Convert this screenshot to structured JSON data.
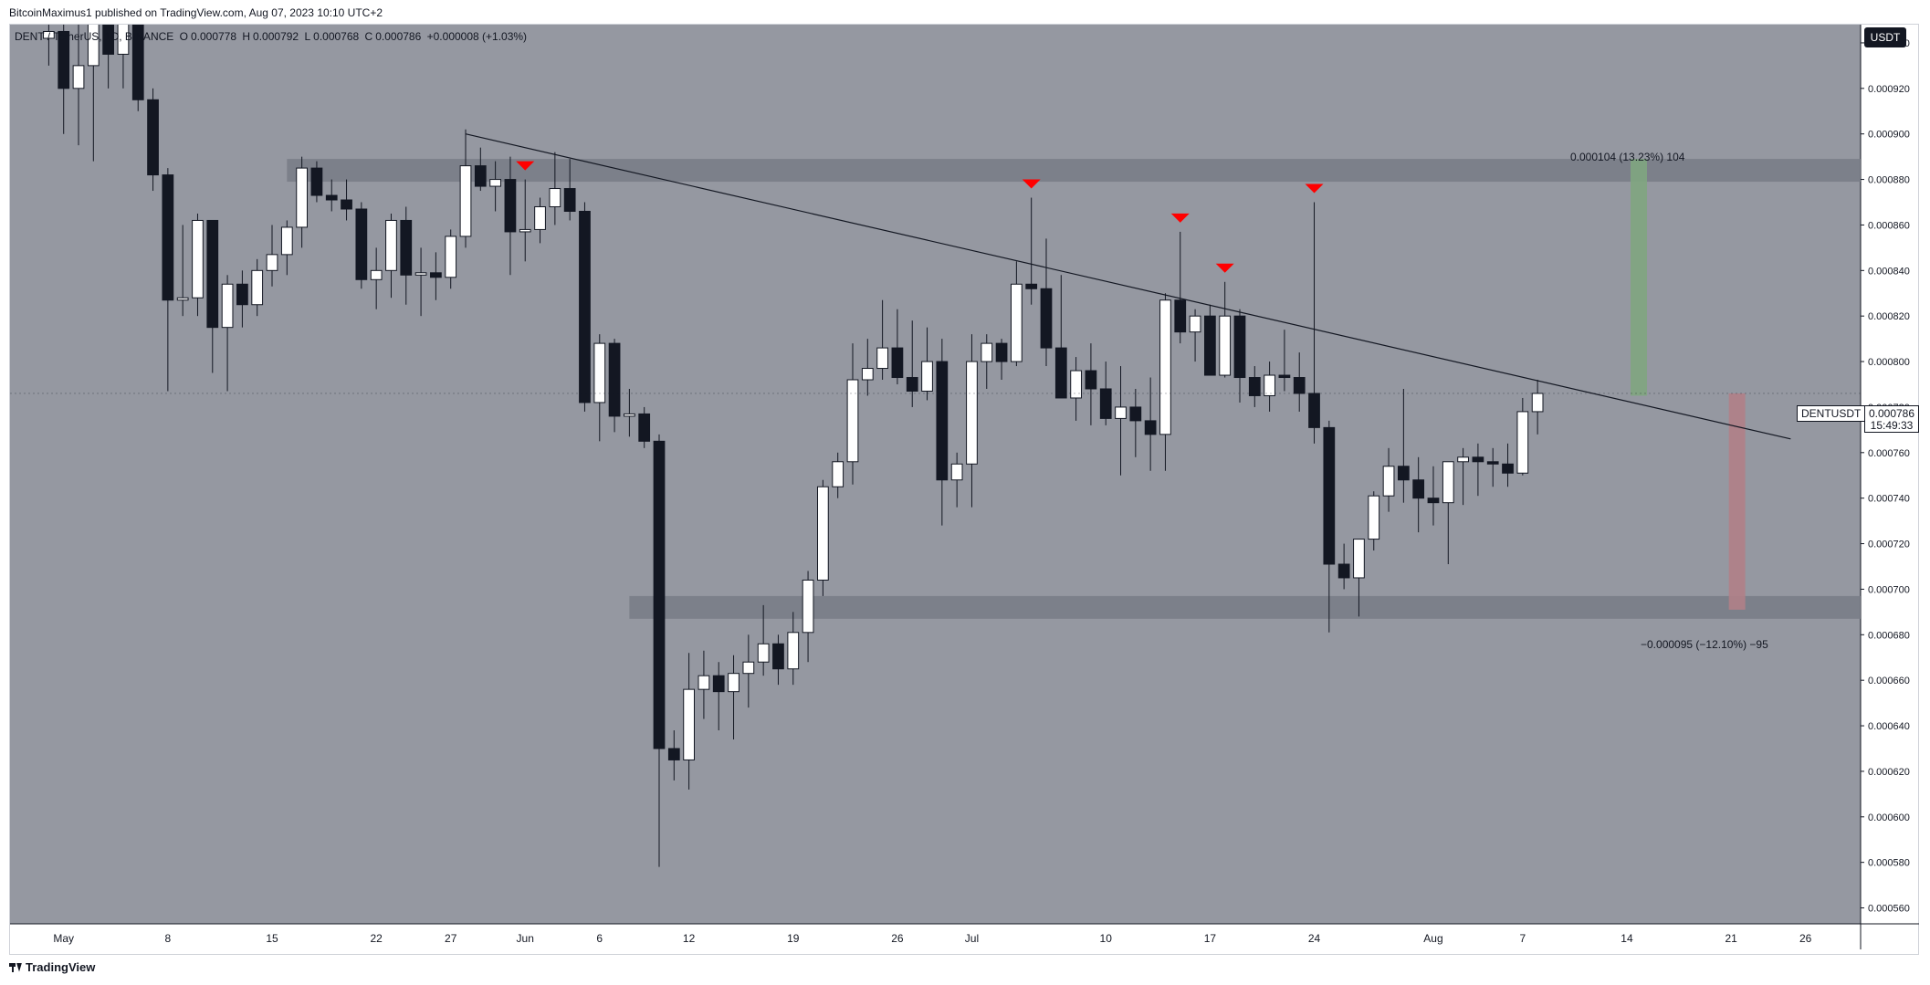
{
  "header": {
    "publisher": "BitcoinMaximus1 published on TradingView.com, Aug 07, 2023 10:10 UTC+2"
  },
  "legend": {
    "symbol": "DENT / TetherUS, 1D, BINANCE",
    "o_label": "O",
    "o_value": "0.000778",
    "h_label": "H",
    "h_value": "0.000792",
    "l_label": "L",
    "l_value": "0.000768",
    "c_label": "C",
    "c_value": "0.000786",
    "change": "+0.000008 (+1.03%)"
  },
  "price_axis": {
    "currency": "USDT",
    "current_price": "0.000786",
    "countdown": "15:49:33",
    "symbol_tag": "DENTUSDT"
  },
  "annotations": {
    "measure_up": "0.000104 (13.23%) 104",
    "measure_down": "−0.000095 (−12.10%) −95"
  },
  "footer": {
    "brand": "TradingView"
  },
  "colors": {
    "background": "#9598a1",
    "up_candle": "#ffffff",
    "down_candle": "#131722",
    "marker": "#ff0000",
    "zone": "#787b86",
    "measure_up": "#7fa57f",
    "measure_down": "#b07f87"
  },
  "chart_data": {
    "type": "candlestick",
    "x_tick_labels": [
      {
        "label": "May",
        "day": 0
      },
      {
        "label": "8",
        "day": 7
      },
      {
        "label": "15",
        "day": 14
      },
      {
        "label": "22",
        "day": 21
      },
      {
        "label": "27",
        "day": 26
      },
      {
        "label": "Jun",
        "day": 31
      },
      {
        "label": "6",
        "day": 36
      },
      {
        "label": "12",
        "day": 42
      },
      {
        "label": "19",
        "day": 49
      },
      {
        "label": "26",
        "day": 56
      },
      {
        "label": "Jul",
        "day": 61
      },
      {
        "label": "10",
        "day": 70
      },
      {
        "label": "17",
        "day": 77
      },
      {
        "label": "24",
        "day": 84
      },
      {
        "label": "Aug",
        "day": 92
      },
      {
        "label": "7",
        "day": 98
      },
      {
        "label": "14",
        "day": 105
      },
      {
        "label": "21",
        "day": 112
      },
      {
        "label": "26",
        "day": 117
      }
    ],
    "y_ticks": [
      "0.000940",
      "0.000920",
      "0.000900",
      "0.000880",
      "0.000860",
      "0.000840",
      "0.000820",
      "0.000800",
      "0.000780",
      "0.000760",
      "0.000740",
      "0.000720",
      "0.000700",
      "0.000680",
      "0.000660",
      "0.000640",
      "0.000620",
      "0.000600",
      "0.000580",
      "0.000560"
    ],
    "ylim": [
      0.000553,
      0.000948
    ],
    "xlim_days": [
      -3.6,
      120.7
    ],
    "candles": [
      {
        "d": -1,
        "o": 0.000942,
        "h": 0.000955,
        "l": 0.00093,
        "c": 0.000945
      },
      {
        "d": 0,
        "o": 0.000945,
        "h": 0.000955,
        "l": 0.0009,
        "c": 0.00092
      },
      {
        "d": 1,
        "o": 0.00092,
        "h": 0.00095,
        "l": 0.000895,
        "c": 0.00093
      },
      {
        "d": 2,
        "o": 0.00093,
        "h": 0.00096,
        "l": 0.000888,
        "c": 0.00095
      },
      {
        "d": 3,
        "o": 0.00095,
        "h": 0.000985,
        "l": 0.00092,
        "c": 0.000935
      },
      {
        "d": 4,
        "o": 0.000935,
        "h": 0.00097,
        "l": 0.00092,
        "c": 0.000955
      },
      {
        "d": 5,
        "o": 0.000955,
        "h": 0.00096,
        "l": 0.00091,
        "c": 0.000915
      },
      {
        "d": 6,
        "o": 0.000915,
        "h": 0.00092,
        "l": 0.000875,
        "c": 0.000882
      },
      {
        "d": 7,
        "o": 0.000882,
        "h": 0.000885,
        "l": 0.000787,
        "c": 0.000827
      },
      {
        "d": 8,
        "o": 0.000827,
        "h": 0.00086,
        "l": 0.00082,
        "c": 0.000828
      },
      {
        "d": 9,
        "o": 0.000828,
        "h": 0.000865,
        "l": 0.00082,
        "c": 0.000862
      },
      {
        "d": 10,
        "o": 0.000862,
        "h": 0.000862,
        "l": 0.000795,
        "c": 0.000815
      },
      {
        "d": 11,
        "o": 0.000815,
        "h": 0.000838,
        "l": 0.000787,
        "c": 0.000834
      },
      {
        "d": 12,
        "o": 0.000834,
        "h": 0.00084,
        "l": 0.000815,
        "c": 0.000825
      },
      {
        "d": 13,
        "o": 0.000825,
        "h": 0.000845,
        "l": 0.00082,
        "c": 0.00084
      },
      {
        "d": 14,
        "o": 0.00084,
        "h": 0.00086,
        "l": 0.000833,
        "c": 0.000847
      },
      {
        "d": 15,
        "o": 0.000847,
        "h": 0.000862,
        "l": 0.000838,
        "c": 0.000859
      },
      {
        "d": 16,
        "o": 0.000859,
        "h": 0.00089,
        "l": 0.00085,
        "c": 0.000885
      },
      {
        "d": 17,
        "o": 0.000885,
        "h": 0.000888,
        "l": 0.00087,
        "c": 0.000873
      },
      {
        "d": 18,
        "o": 0.000873,
        "h": 0.00088,
        "l": 0.000866,
        "c": 0.000871
      },
      {
        "d": 19,
        "o": 0.000871,
        "h": 0.00088,
        "l": 0.000862,
        "c": 0.000867
      },
      {
        "d": 20,
        "o": 0.000867,
        "h": 0.00087,
        "l": 0.000832,
        "c": 0.000836
      },
      {
        "d": 21,
        "o": 0.000836,
        "h": 0.00085,
        "l": 0.000823,
        "c": 0.00084
      },
      {
        "d": 22,
        "o": 0.00084,
        "h": 0.000865,
        "l": 0.000828,
        "c": 0.000862
      },
      {
        "d": 23,
        "o": 0.000862,
        "h": 0.000868,
        "l": 0.000825,
        "c": 0.000838
      },
      {
        "d": 24,
        "o": 0.000838,
        "h": 0.00085,
        "l": 0.00082,
        "c": 0.000839
      },
      {
        "d": 25,
        "o": 0.000839,
        "h": 0.000848,
        "l": 0.000827,
        "c": 0.000837
      },
      {
        "d": 26,
        "o": 0.000837,
        "h": 0.000858,
        "l": 0.000832,
        "c": 0.000855
      },
      {
        "d": 27,
        "o": 0.000855,
        "h": 0.000902,
        "l": 0.00085,
        "c": 0.000886
      },
      {
        "d": 28,
        "o": 0.000886,
        "h": 0.000894,
        "l": 0.000875,
        "c": 0.000877
      },
      {
        "d": 29,
        "o": 0.000877,
        "h": 0.000888,
        "l": 0.000866,
        "c": 0.00088
      },
      {
        "d": 30,
        "o": 0.00088,
        "h": 0.00089,
        "l": 0.000838,
        "c": 0.000857
      },
      {
        "d": 31,
        "o": 0.000857,
        "h": 0.00088,
        "l": 0.000844,
        "c": 0.000858
      },
      {
        "d": 32,
        "o": 0.000858,
        "h": 0.000872,
        "l": 0.000852,
        "c": 0.000868
      },
      {
        "d": 33,
        "o": 0.000868,
        "h": 0.000892,
        "l": 0.00086,
        "c": 0.000876
      },
      {
        "d": 34,
        "o": 0.000876,
        "h": 0.000889,
        "l": 0.000862,
        "c": 0.000866
      },
      {
        "d": 35,
        "o": 0.000866,
        "h": 0.00087,
        "l": 0.000778,
        "c": 0.000782
      },
      {
        "d": 36,
        "o": 0.000782,
        "h": 0.000812,
        "l": 0.000765,
        "c": 0.000808
      },
      {
        "d": 37,
        "o": 0.000808,
        "h": 0.00081,
        "l": 0.000769,
        "c": 0.000776
      },
      {
        "d": 38,
        "o": 0.000776,
        "h": 0.000788,
        "l": 0.000767,
        "c": 0.000777
      },
      {
        "d": 39,
        "o": 0.000777,
        "h": 0.00078,
        "l": 0.000762,
        "c": 0.000765
      },
      {
        "d": 40,
        "o": 0.000765,
        "h": 0.000768,
        "l": 0.000578,
        "c": 0.00063
      },
      {
        "d": 41,
        "o": 0.00063,
        "h": 0.000638,
        "l": 0.000616,
        "c": 0.000625
      },
      {
        "d": 42,
        "o": 0.000625,
        "h": 0.000672,
        "l": 0.000612,
        "c": 0.000656
      },
      {
        "d": 43,
        "o": 0.000656,
        "h": 0.000673,
        "l": 0.000643,
        "c": 0.000662
      },
      {
        "d": 44,
        "o": 0.000662,
        "h": 0.000668,
        "l": 0.000638,
        "c": 0.000655
      },
      {
        "d": 45,
        "o": 0.000655,
        "h": 0.000671,
        "l": 0.000634,
        "c": 0.000663
      },
      {
        "d": 46,
        "o": 0.000663,
        "h": 0.00068,
        "l": 0.000648,
        "c": 0.000668
      },
      {
        "d": 47,
        "o": 0.000668,
        "h": 0.000693,
        "l": 0.000662,
        "c": 0.000676
      },
      {
        "d": 48,
        "o": 0.000676,
        "h": 0.00068,
        "l": 0.000658,
        "c": 0.000665
      },
      {
        "d": 49,
        "o": 0.000665,
        "h": 0.00069,
        "l": 0.000658,
        "c": 0.000681
      },
      {
        "d": 50,
        "o": 0.000681,
        "h": 0.000708,
        "l": 0.000668,
        "c": 0.000704
      },
      {
        "d": 51,
        "o": 0.000704,
        "h": 0.000748,
        "l": 0.000697,
        "c": 0.000745
      },
      {
        "d": 52,
        "o": 0.000745,
        "h": 0.00076,
        "l": 0.00074,
        "c": 0.000756
      },
      {
        "d": 53,
        "o": 0.000756,
        "h": 0.000808,
        "l": 0.000746,
        "c": 0.000792
      },
      {
        "d": 54,
        "o": 0.000792,
        "h": 0.00081,
        "l": 0.000785,
        "c": 0.000797
      },
      {
        "d": 55,
        "o": 0.000797,
        "h": 0.000827,
        "l": 0.000792,
        "c": 0.000806
      },
      {
        "d": 56,
        "o": 0.000806,
        "h": 0.000823,
        "l": 0.00079,
        "c": 0.000793
      },
      {
        "d": 57,
        "o": 0.000793,
        "h": 0.000818,
        "l": 0.00078,
        "c": 0.000787
      },
      {
        "d": 58,
        "o": 0.000787,
        "h": 0.000815,
        "l": 0.000783,
        "c": 0.0008
      },
      {
        "d": 59,
        "o": 0.0008,
        "h": 0.00081,
        "l": 0.000728,
        "c": 0.000748
      },
      {
        "d": 60,
        "o": 0.000748,
        "h": 0.00076,
        "l": 0.000736,
        "c": 0.000755
      },
      {
        "d": 61,
        "o": 0.000755,
        "h": 0.000812,
        "l": 0.000736,
        "c": 0.0008
      },
      {
        "d": 62,
        "o": 0.0008,
        "h": 0.000812,
        "l": 0.000788,
        "c": 0.000808
      },
      {
        "d": 63,
        "o": 0.000808,
        "h": 0.00081,
        "l": 0.000792,
        "c": 0.0008
      },
      {
        "d": 64,
        "o": 0.0008,
        "h": 0.000844,
        "l": 0.000798,
        "c": 0.000834
      },
      {
        "d": 65,
        "o": 0.000834,
        "h": 0.000872,
        "l": 0.000825,
        "c": 0.000832
      },
      {
        "d": 66,
        "o": 0.000832,
        "h": 0.000854,
        "l": 0.000798,
        "c": 0.000806
      },
      {
        "d": 67,
        "o": 0.000806,
        "h": 0.000838,
        "l": 0.000784,
        "c": 0.000784
      },
      {
        "d": 68,
        "o": 0.000784,
        "h": 0.000802,
        "l": 0.000774,
        "c": 0.000796
      },
      {
        "d": 69,
        "o": 0.000796,
        "h": 0.000808,
        "l": 0.000772,
        "c": 0.000788
      },
      {
        "d": 70,
        "o": 0.000788,
        "h": 0.0008,
        "l": 0.000772,
        "c": 0.000775
      },
      {
        "d": 71,
        "o": 0.000775,
        "h": 0.000798,
        "l": 0.00075,
        "c": 0.00078
      },
      {
        "d": 72,
        "o": 0.00078,
        "h": 0.000788,
        "l": 0.000758,
        "c": 0.000774
      },
      {
        "d": 73,
        "o": 0.000774,
        "h": 0.000793,
        "l": 0.000752,
        "c": 0.000768
      },
      {
        "d": 74,
        "o": 0.000768,
        "h": 0.00083,
        "l": 0.000752,
        "c": 0.000827
      },
      {
        "d": 75,
        "o": 0.000827,
        "h": 0.000857,
        "l": 0.000808,
        "c": 0.000813
      },
      {
        "d": 76,
        "o": 0.000813,
        "h": 0.000823,
        "l": 0.0008,
        "c": 0.00082
      },
      {
        "d": 77,
        "o": 0.00082,
        "h": 0.000825,
        "l": 0.000797,
        "c": 0.000794
      },
      {
        "d": 78,
        "o": 0.000794,
        "h": 0.000835,
        "l": 0.000793,
        "c": 0.00082
      },
      {
        "d": 79,
        "o": 0.00082,
        "h": 0.000823,
        "l": 0.000782,
        "c": 0.000793
      },
      {
        "d": 80,
        "o": 0.000793,
        "h": 0.000798,
        "l": 0.00078,
        "c": 0.000785
      },
      {
        "d": 81,
        "o": 0.000785,
        "h": 0.0008,
        "l": 0.000778,
        "c": 0.000794
      },
      {
        "d": 82,
        "o": 0.000794,
        "h": 0.000814,
        "l": 0.000787,
        "c": 0.000793
      },
      {
        "d": 83,
        "o": 0.000793,
        "h": 0.000804,
        "l": 0.000778,
        "c": 0.000786
      },
      {
        "d": 84,
        "o": 0.000786,
        "h": 0.00087,
        "l": 0.000764,
        "c": 0.000771
      },
      {
        "d": 85,
        "o": 0.000771,
        "h": 0.000774,
        "l": 0.000681,
        "c": 0.000711
      },
      {
        "d": 86,
        "o": 0.000711,
        "h": 0.00072,
        "l": 0.0007,
        "c": 0.000705
      },
      {
        "d": 87,
        "o": 0.000705,
        "h": 0.000722,
        "l": 0.000688,
        "c": 0.000722
      },
      {
        "d": 88,
        "o": 0.000722,
        "h": 0.000743,
        "l": 0.000717,
        "c": 0.000741
      },
      {
        "d": 89,
        "o": 0.000741,
        "h": 0.000762,
        "l": 0.000734,
        "c": 0.000754
      },
      {
        "d": 90,
        "o": 0.000754,
        "h": 0.000788,
        "l": 0.000738,
        "c": 0.000748
      },
      {
        "d": 91,
        "o": 0.000748,
        "h": 0.000758,
        "l": 0.000725,
        "c": 0.00074
      },
      {
        "d": 92,
        "o": 0.00074,
        "h": 0.000754,
        "l": 0.000728,
        "c": 0.000738
      },
      {
        "d": 93,
        "o": 0.000738,
        "h": 0.000754,
        "l": 0.000711,
        "c": 0.000756
      },
      {
        "d": 94,
        "o": 0.000756,
        "h": 0.000762,
        "l": 0.000737,
        "c": 0.000758
      },
      {
        "d": 95,
        "o": 0.000758,
        "h": 0.000764,
        "l": 0.000741,
        "c": 0.000756
      },
      {
        "d": 96,
        "o": 0.000756,
        "h": 0.000762,
        "l": 0.000745,
        "c": 0.000755
      },
      {
        "d": 97,
        "o": 0.000755,
        "h": 0.000764,
        "l": 0.000745,
        "c": 0.000751
      },
      {
        "d": 98,
        "o": 0.000751,
        "h": 0.000784,
        "l": 0.00075,
        "c": 0.000778
      },
      {
        "d": 99,
        "o": 0.000778,
        "h": 0.000792,
        "l": 0.000768,
        "c": 0.000786
      }
    ],
    "markers_days": [
      31,
      65,
      75,
      78,
      84
    ],
    "resistance_zone": {
      "from_day": 15,
      "to_day": 120.7,
      "low": 0.000879,
      "high": 0.000889
    },
    "support_zone": {
      "from_day": 38,
      "to_day": 120.7,
      "low": 0.000687,
      "high": 0.000697
    },
    "trendline": {
      "x1_day": 27,
      "y1": 0.0009,
      "x2_day": 116,
      "y2": 0.000766
    },
    "measure_up_box": {
      "day": 105.8,
      "low": 0.000785,
      "high": 0.000889
    },
    "measure_down_box": {
      "day": 112.4,
      "low": 0.000691,
      "high": 0.000786
    },
    "current_price": 0.000786
  }
}
